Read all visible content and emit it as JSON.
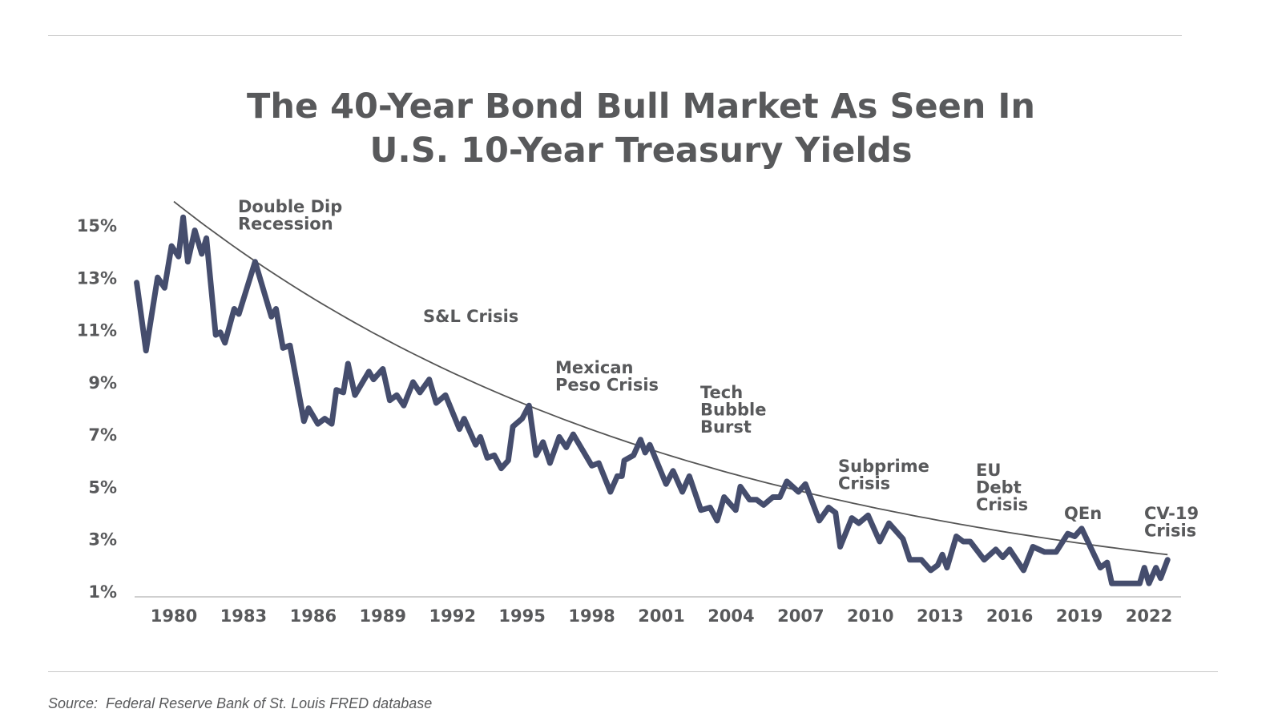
{
  "chart_data": {
    "type": "line",
    "title_lines": [
      "The 40-Year Bond Bull Market As Seen In",
      "U.S. 10-Year Treasury Yields"
    ],
    "xlabel": "",
    "ylabel": "",
    "x_ticks": [
      "1980",
      "1983",
      "1986",
      "1989",
      "1992",
      "1995",
      "1998",
      "2001",
      "2004",
      "2007",
      "2010",
      "2013",
      "2016",
      "2019",
      "2022"
    ],
    "y_ticks": [
      "1%",
      "3%",
      "5%",
      "7%",
      "9%",
      "11%",
      "13%",
      "15%"
    ],
    "xlim": [
      1978.4,
      2023.0
    ],
    "ylim": [
      1,
      16
    ],
    "grid": false,
    "colors": {
      "series": "#454d6d",
      "trend": "#555555",
      "text": "#58595b",
      "rule": "#c8c8c8"
    },
    "series": [
      {
        "values": [
          [
            1978.4,
            12.8
          ],
          [
            1978.8,
            10.2
          ],
          [
            1979.3,
            13.0
          ],
          [
            1979.6,
            12.6
          ],
          [
            1979.9,
            14.2
          ],
          [
            1980.2,
            13.8
          ],
          [
            1980.4,
            15.3
          ],
          [
            1980.6,
            13.6
          ],
          [
            1980.9,
            14.8
          ],
          [
            1981.2,
            13.9
          ],
          [
            1981.4,
            14.5
          ],
          [
            1981.8,
            10.8
          ],
          [
            1982.0,
            10.9
          ],
          [
            1982.2,
            10.5
          ],
          [
            1982.6,
            11.8
          ],
          [
            1982.8,
            11.6
          ],
          [
            1983.5,
            13.6
          ],
          [
            1984.2,
            11.5
          ],
          [
            1984.4,
            11.8
          ],
          [
            1984.7,
            10.3
          ],
          [
            1985.0,
            10.4
          ],
          [
            1985.6,
            7.5
          ],
          [
            1985.8,
            8.0
          ],
          [
            1986.2,
            7.4
          ],
          [
            1986.5,
            7.6
          ],
          [
            1986.8,
            7.4
          ],
          [
            1987.0,
            8.7
          ],
          [
            1987.3,
            8.6
          ],
          [
            1987.5,
            9.7
          ],
          [
            1987.8,
            8.5
          ],
          [
            1988.4,
            9.4
          ],
          [
            1988.6,
            9.1
          ],
          [
            1989.0,
            9.5
          ],
          [
            1989.3,
            8.3
          ],
          [
            1989.6,
            8.5
          ],
          [
            1989.9,
            8.1
          ],
          [
            1990.3,
            9.0
          ],
          [
            1990.6,
            8.6
          ],
          [
            1991.0,
            9.1
          ],
          [
            1991.3,
            8.2
          ],
          [
            1991.7,
            8.5
          ],
          [
            1992.3,
            7.2
          ],
          [
            1992.5,
            7.6
          ],
          [
            1993.0,
            6.6
          ],
          [
            1993.2,
            6.9
          ],
          [
            1993.5,
            6.1
          ],
          [
            1993.8,
            6.2
          ],
          [
            1994.1,
            5.7
          ],
          [
            1994.4,
            6.0
          ],
          [
            1994.6,
            7.3
          ],
          [
            1995.0,
            7.6
          ],
          [
            1995.3,
            8.1
          ],
          [
            1995.6,
            6.2
          ],
          [
            1995.9,
            6.7
          ],
          [
            1996.2,
            5.9
          ],
          [
            1996.6,
            6.9
          ],
          [
            1996.9,
            6.5
          ],
          [
            1997.2,
            7.0
          ],
          [
            1998.0,
            5.8
          ],
          [
            1998.3,
            5.9
          ],
          [
            1998.8,
            4.8
          ],
          [
            1999.1,
            5.4
          ],
          [
            1999.3,
            5.4
          ],
          [
            1999.4,
            6.0
          ],
          [
            1999.8,
            6.2
          ],
          [
            2000.1,
            6.8
          ],
          [
            2000.3,
            6.3
          ],
          [
            2000.5,
            6.6
          ],
          [
            2001.2,
            5.1
          ],
          [
            2001.5,
            5.6
          ],
          [
            2001.9,
            4.8
          ],
          [
            2002.2,
            5.4
          ],
          [
            2002.7,
            4.1
          ],
          [
            2003.1,
            4.2
          ],
          [
            2003.4,
            3.7
          ],
          [
            2003.7,
            4.6
          ],
          [
            2004.2,
            4.1
          ],
          [
            2004.4,
            5.0
          ],
          [
            2004.8,
            4.5
          ],
          [
            2005.1,
            4.5
          ],
          [
            2005.4,
            4.3
          ],
          [
            2005.8,
            4.6
          ],
          [
            2006.1,
            4.6
          ],
          [
            2006.4,
            5.2
          ],
          [
            2006.9,
            4.8
          ],
          [
            2007.2,
            5.1
          ],
          [
            2007.8,
            3.7
          ],
          [
            2008.2,
            4.2
          ],
          [
            2008.5,
            4.0
          ],
          [
            2008.7,
            2.7
          ],
          [
            2009.2,
            3.8
          ],
          [
            2009.5,
            3.6
          ],
          [
            2009.9,
            3.9
          ],
          [
            2010.4,
            2.9
          ],
          [
            2010.8,
            3.6
          ],
          [
            2011.4,
            3.0
          ],
          [
            2011.7,
            2.2
          ],
          [
            2012.2,
            2.2
          ],
          [
            2012.6,
            1.8
          ],
          [
            2012.9,
            2.0
          ],
          [
            2013.1,
            2.4
          ],
          [
            2013.3,
            1.9
          ],
          [
            2013.7,
            3.1
          ],
          [
            2014.0,
            2.9
          ],
          [
            2014.3,
            2.9
          ],
          [
            2014.9,
            2.2
          ],
          [
            2015.4,
            2.6
          ],
          [
            2015.7,
            2.3
          ],
          [
            2016.0,
            2.6
          ],
          [
            2016.6,
            1.8
          ],
          [
            2017.0,
            2.7
          ],
          [
            2017.5,
            2.5
          ],
          [
            2018.0,
            2.5
          ],
          [
            2018.5,
            3.2
          ],
          [
            2018.8,
            3.1
          ],
          [
            2019.1,
            3.4
          ],
          [
            2019.9,
            1.9
          ],
          [
            2020.2,
            2.1
          ],
          [
            2020.4,
            1.3
          ],
          [
            2020.9,
            1.3
          ],
          [
            2021.3,
            1.3
          ],
          [
            2021.6,
            1.3
          ],
          [
            2021.8,
            1.9
          ],
          [
            2022.0,
            1.3
          ],
          [
            2022.3,
            1.9
          ],
          [
            2022.5,
            1.5
          ],
          [
            2022.8,
            2.2
          ]
        ]
      }
    ],
    "trendline": {
      "from": [
        1980.0,
        15.9
      ],
      "to": [
        2022.8,
        2.4
      ],
      "shape": "exponential decay"
    },
    "annotations": [
      {
        "id": "double-dip",
        "lines": [
          "Double Dip",
          "Recession"
        ]
      },
      {
        "id": "sl-crisis",
        "lines": [
          "S&L Crisis"
        ]
      },
      {
        "id": "mexican-peso",
        "lines": [
          "Mexican",
          "Peso Crisis"
        ]
      },
      {
        "id": "tech-bubble",
        "lines": [
          "Tech",
          "Bubble",
          "Burst"
        ]
      },
      {
        "id": "subprime",
        "lines": [
          "Subprime",
          "Crisis"
        ]
      },
      {
        "id": "eu-debt",
        "lines": [
          "EU",
          "Debt",
          "Crisis"
        ]
      },
      {
        "id": "qen",
        "lines": [
          "QEn"
        ]
      },
      {
        "id": "cv19",
        "lines": [
          "CV-19",
          "Crisis"
        ]
      }
    ],
    "source": "Source:  Federal Reserve Bank of St. Louis FRED database"
  }
}
